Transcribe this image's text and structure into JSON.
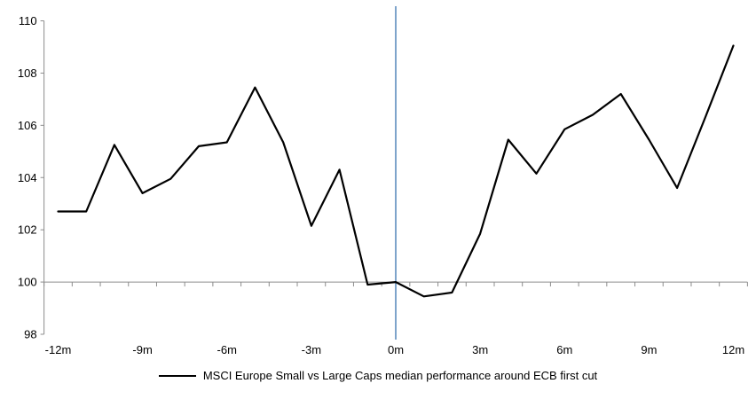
{
  "chart_data": {
    "type": "line",
    "title": "",
    "legend_position": "bottom-center",
    "grid": false,
    "x_axis_unit": "months relative to first cut",
    "x": [
      -12,
      -11,
      -10,
      -9,
      -8,
      -7,
      -6,
      -5,
      -4,
      -3,
      -2,
      -1,
      0,
      1,
      2,
      3,
      4,
      5,
      6,
      7,
      8,
      9,
      10,
      11,
      12
    ],
    "series": [
      {
        "name": "MSCI Europe Small vs Large Caps median performance around ECB first cut",
        "color": "#000000",
        "values": [
          102.7,
          102.7,
          105.25,
          103.4,
          103.95,
          105.2,
          105.35,
          107.45,
          105.35,
          102.15,
          104.3,
          99.9,
          100.0,
          99.45,
          99.6,
          101.85,
          105.45,
          104.15,
          105.85,
          106.4,
          107.2,
          105.45,
          103.6,
          106.3,
          109.05
        ]
      }
    ],
    "x_tick_months": [
      -12,
      -9,
      -6,
      -3,
      0,
      3,
      6,
      9,
      12
    ],
    "x_tick_labels": [
      "-12m",
      "-9m",
      "-6m",
      "-3m",
      "0m",
      "3m",
      "6m",
      "9m",
      "12m"
    ],
    "y_ticks": [
      98,
      100,
      102,
      104,
      106,
      108,
      110
    ],
    "ylim": [
      98,
      110
    ],
    "xlim": [
      -12.5,
      12.5
    ],
    "category_axis_value": 100,
    "event_line": {
      "x_month": 0,
      "color": "#7EA4CB"
    },
    "colors": {
      "series_line": "#000000",
      "axis": "#8C8C8C",
      "event_line": "#7EA4CB",
      "background": "#FFFFFF",
      "text": "#000000"
    }
  }
}
